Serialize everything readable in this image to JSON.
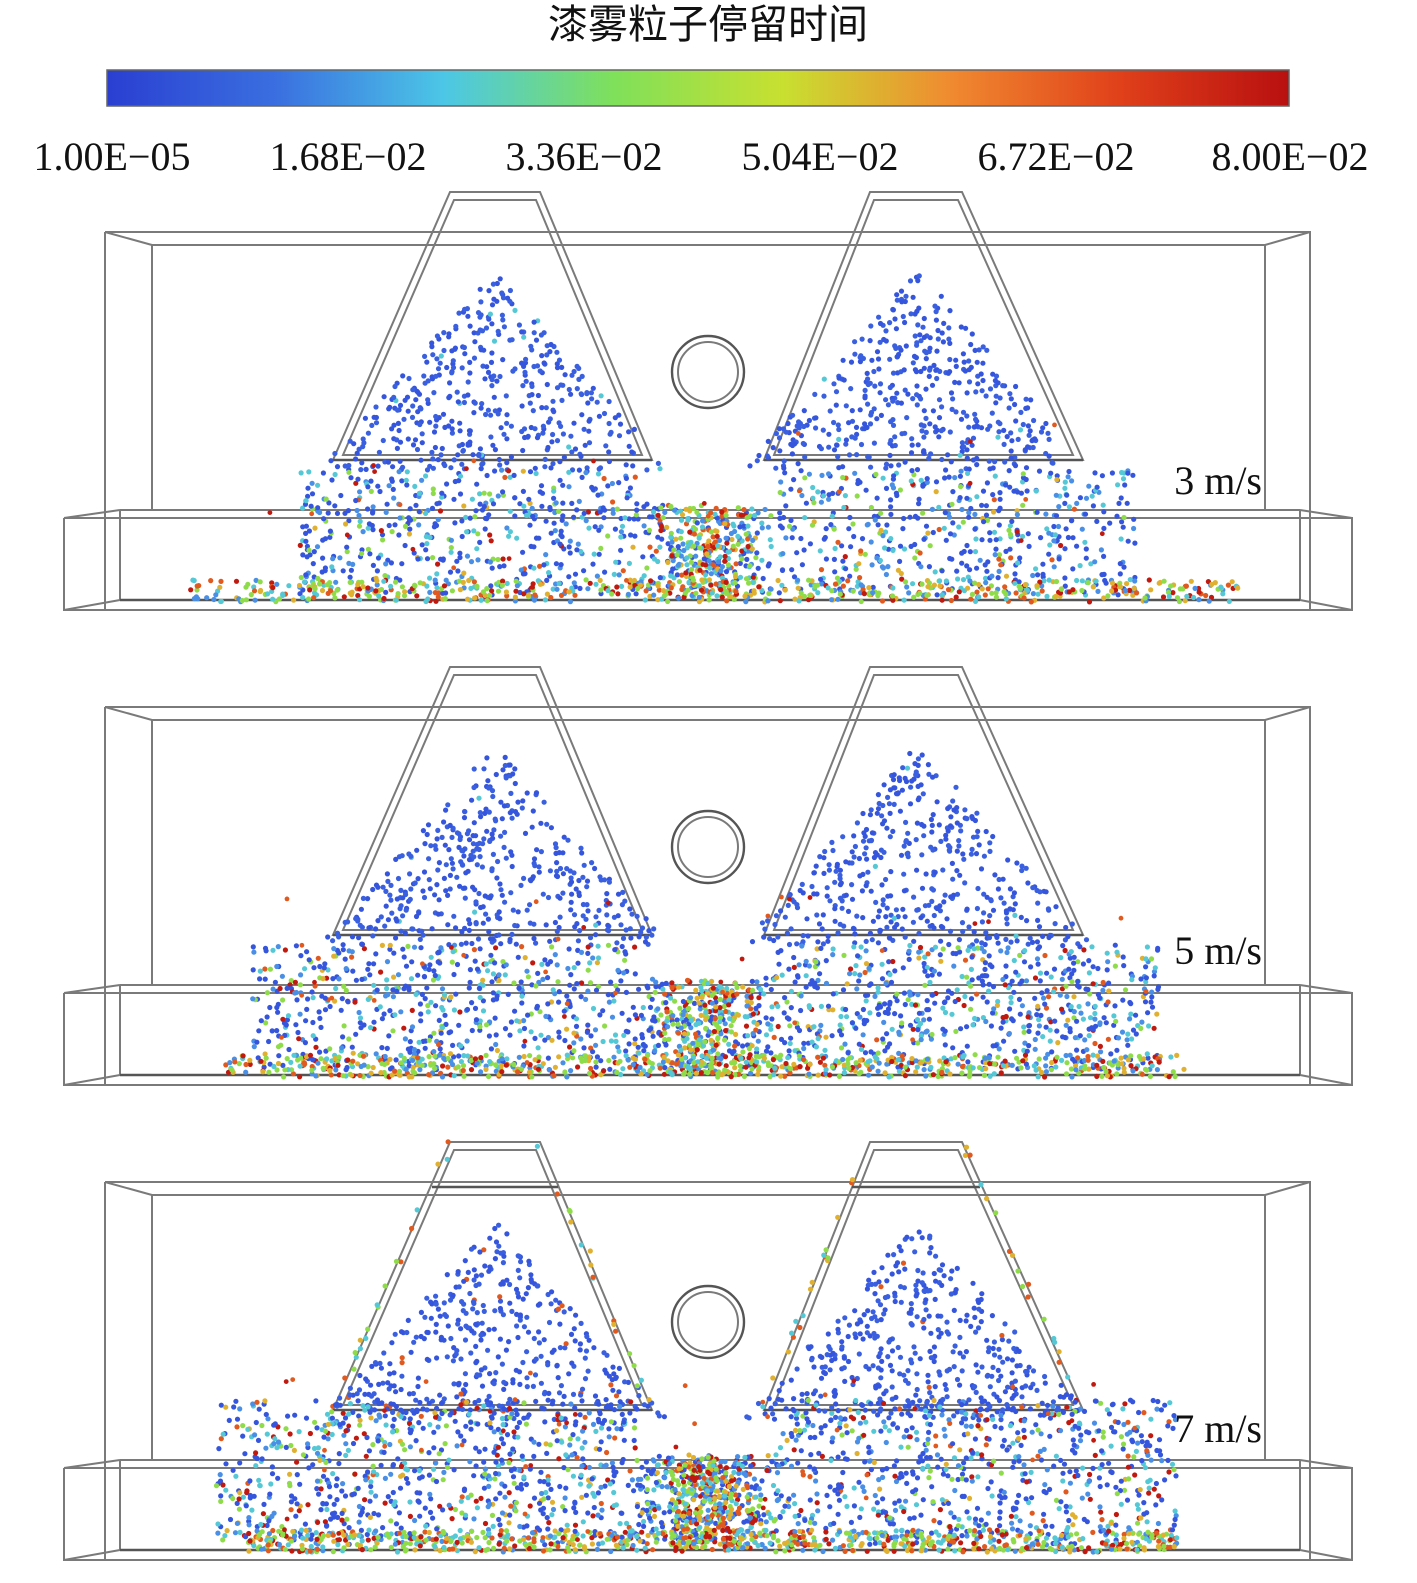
{
  "colorbar": {
    "title": "漆雾粒子停留时间",
    "ticks": [
      "1.00E−05",
      "1.68E−02",
      "3.36E−02",
      "5.04E−02",
      "6.72E−02",
      "8.00E−02"
    ],
    "min": 1e-05,
    "max": 0.08,
    "gradient": [
      "#2a3fd1",
      "#3a6fe0",
      "#4cc7e6",
      "#7fe05a",
      "#c8e030",
      "#f08a30",
      "#e0401a",
      "#b81010"
    ]
  },
  "panels": [
    {
      "label": "3 m/s"
    },
    {
      "label": "5 m/s"
    },
    {
      "label": "7 m/s"
    }
  ],
  "particle_colors": {
    "low": "#3556dc",
    "low_mid": "#4a8fe6",
    "mid": "#55c8d6",
    "mid_high": "#8fdc4a",
    "high": "#e0b030",
    "very_high": "#e05a20",
    "max": "#c01a10"
  }
}
